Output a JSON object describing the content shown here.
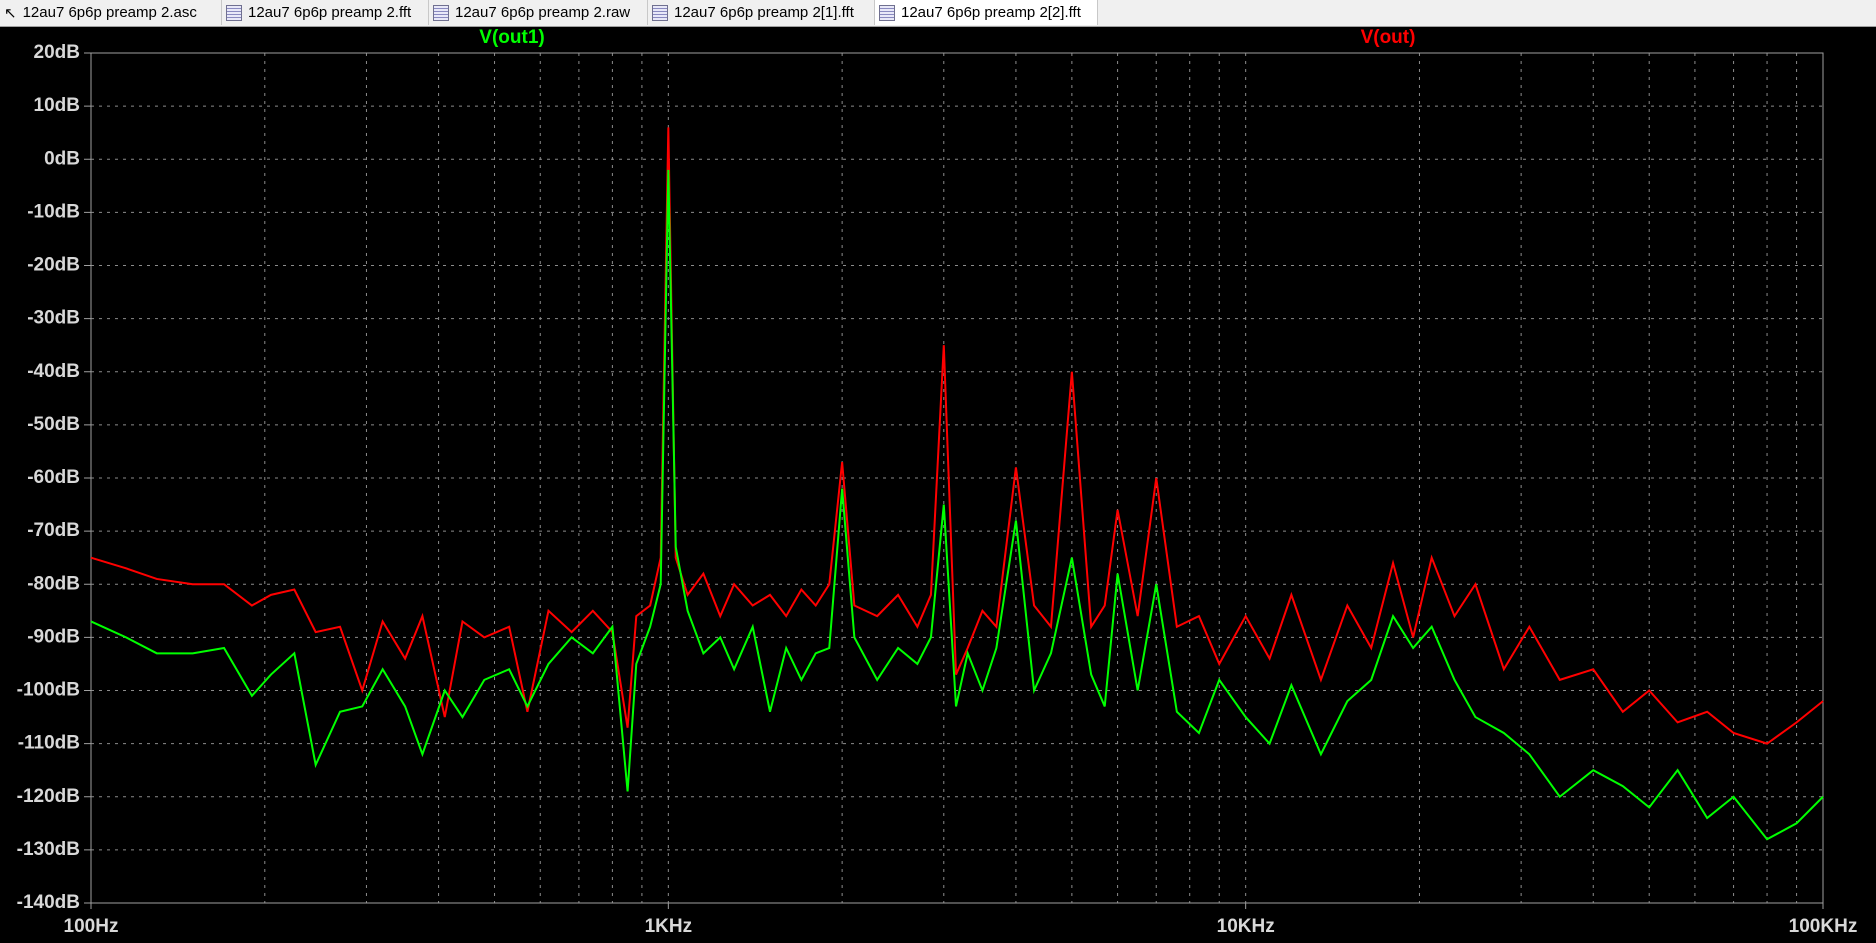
{
  "tabs": [
    "12au7 6p6p preamp 2.asc",
    "12au7 6p6p preamp 2.fft",
    "12au7 6p6p preamp 2.raw",
    "12au7 6p6p preamp 2[1].fft",
    "12au7 6p6p preamp 2[2].fft"
  ],
  "chart_data": {
    "type": "line",
    "xscale": "log",
    "grid": true,
    "x": [
      100,
      115,
      130,
      150,
      170,
      190,
      205,
      225,
      245,
      270,
      295,
      320,
      350,
      375,
      410,
      440,
      480,
      530,
      570,
      620,
      680,
      740,
      800,
      850,
      880,
      930,
      970,
      1000,
      1030,
      1080,
      1150,
      1230,
      1300,
      1400,
      1500,
      1600,
      1700,
      1800,
      1900,
      2000,
      2100,
      2300,
      2500,
      2700,
      2850,
      3000,
      3150,
      3300,
      3500,
      3700,
      4000,
      4300,
      4600,
      5000,
      5400,
      5700,
      6000,
      6500,
      7000,
      7600,
      8300,
      9000,
      10000,
      11000,
      12000,
      13500,
      15000,
      16500,
      18000,
      19500,
      21000,
      23000,
      25000,
      28000,
      31000,
      35000,
      40000,
      45000,
      50000,
      56000,
      63000,
      70000,
      80000,
      90000,
      100000
    ],
    "series": [
      {
        "name": "V(out1)",
        "color": "#00ff00",
        "values": [
          -87,
          -90,
          -93,
          -93,
          -92,
          -101,
          -97,
          -93,
          -114,
          -104,
          -103,
          -96,
          -103,
          -112,
          -100,
          -105,
          -98,
          -96,
          -103,
          -95,
          -90,
          -93,
          -88,
          -119,
          -95,
          -88,
          -80,
          -2,
          -73,
          -85,
          -93,
          -90,
          -96,
          -88,
          -104,
          -92,
          -98,
          -93,
          -92,
          -62,
          -90,
          -98,
          -92,
          -95,
          -90,
          -65,
          -103,
          -93,
          -100,
          -92,
          -68,
          -100,
          -93,
          -75,
          -97,
          -103,
          -78,
          -100,
          -80,
          -104,
          -108,
          -98,
          -105,
          -110,
          -99,
          -112,
          -102,
          -98,
          -86,
          -92,
          -88,
          -98,
          -105,
          -108,
          -112,
          -120,
          -115,
          -118,
          -122,
          -115,
          -124,
          -120,
          -128,
          -125,
          -120
        ]
      },
      {
        "name": "V(out)",
        "color": "#ff0000",
        "values": [
          -75,
          -77,
          -79,
          -80,
          -80,
          -84,
          -82,
          -81,
          -89,
          -88,
          -100,
          -87,
          -94,
          -86,
          -105,
          -87,
          -90,
          -88,
          -104,
          -85,
          -89,
          -85,
          -89,
          -107,
          -86,
          -84,
          -75,
          6,
          -75,
          -82,
          -78,
          -86,
          -80,
          -84,
          -82,
          -86,
          -81,
          -84,
          -80,
          -57,
          -84,
          -86,
          -82,
          -88,
          -82,
          -35,
          -97,
          -92,
          -85,
          -88,
          -58,
          -84,
          -88,
          -40,
          -88,
          -84,
          -66,
          -86,
          -60,
          -88,
          -86,
          -95,
          -86,
          -94,
          -82,
          -98,
          -84,
          -92,
          -76,
          -90,
          -75,
          -86,
          -80,
          -96,
          -88,
          -98,
          -96,
          -104,
          -100,
          -106,
          -104,
          -108,
          -110,
          -106,
          -102
        ]
      }
    ],
    "xlim": [
      100,
      100000
    ],
    "xticks": [
      {
        "value": 100,
        "label": "100Hz"
      },
      {
        "value": 1000,
        "label": "1KHz"
      },
      {
        "value": 10000,
        "label": "10KHz"
      },
      {
        "value": 100000,
        "label": "100KHz"
      }
    ],
    "xminorticks": [
      200,
      300,
      400,
      500,
      600,
      700,
      800,
      900,
      2000,
      3000,
      4000,
      5000,
      6000,
      7000,
      8000,
      9000,
      20000,
      30000,
      40000,
      50000,
      60000,
      70000,
      80000,
      90000
    ],
    "ylim": [
      -140,
      20
    ],
    "yticks": [
      {
        "value": -140,
        "label": "-140dB"
      },
      {
        "value": -130,
        "label": "-130dB"
      },
      {
        "value": -120,
        "label": "-120dB"
      },
      {
        "value": -110,
        "label": "-110dB"
      },
      {
        "value": -100,
        "label": "-100dB"
      },
      {
        "value": -90,
        "label": "-90dB"
      },
      {
        "value": -80,
        "label": "-80dB"
      },
      {
        "value": -70,
        "label": "-70dB"
      },
      {
        "value": -60,
        "label": "-60dB"
      },
      {
        "value": -50,
        "label": "-50dB"
      },
      {
        "value": -40,
        "label": "-40dB"
      },
      {
        "value": -30,
        "label": "-30dB"
      },
      {
        "value": -20,
        "label": "-20dB"
      },
      {
        "value": -10,
        "label": "-10dB"
      },
      {
        "value": 0,
        "label": "0dB"
      },
      {
        "value": 10,
        "label": "10dB"
      },
      {
        "value": 20,
        "label": "20dB"
      }
    ]
  }
}
